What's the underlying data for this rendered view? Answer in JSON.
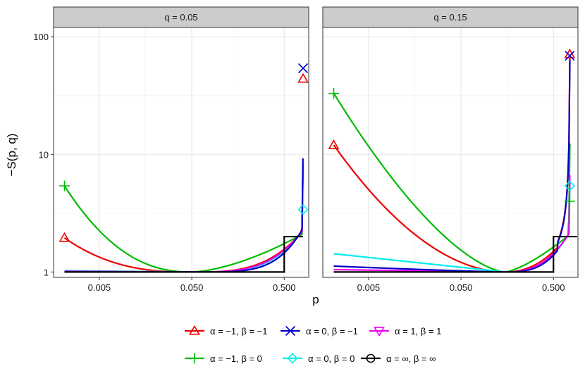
{
  "chart_data": {
    "type": "line",
    "xlabel": "p",
    "ylabel": "−S(p, q)",
    "x_scale": "log10",
    "y_scale": "log10",
    "xlim": [
      0.0016,
      0.92
    ],
    "ylim": [
      0.9,
      120
    ],
    "x_ticks": [
      0.005,
      0.05,
      0.5
    ],
    "x_tick_labels": [
      "0.005",
      "0.050",
      "0.500"
    ],
    "y_ticks": [
      1,
      10,
      100
    ],
    "y_tick_labels": [
      "1",
      "10",
      "100"
    ],
    "grid": true,
    "legend_position": "bottom",
    "colors": {
      "a-1_b-1": "#ee0000",
      "a0_b-1": "#0000cc",
      "a1_b1": "#ee00ee",
      "a-1_b0": "#00bb00",
      "a0_b0": "#00eeee",
      "ainf_binf": "#000000"
    },
    "legend": [
      {
        "key": "a-1_b-1",
        "label": "α = −1, β = −1",
        "marker": "triangle-up"
      },
      {
        "key": "a0_b-1",
        "label": "α = 0, β = −1",
        "marker": "cross"
      },
      {
        "key": "a1_b1",
        "label": "α = 1, β = 1",
        "marker": "triangle-down"
      },
      {
        "key": "a-1_b0",
        "label": "α = −1, β = 0",
        "marker": "plus"
      },
      {
        "key": "a0_b0",
        "label": "α = 0, β = 0",
        "marker": "diamond"
      },
      {
        "key": "ainf_binf",
        "label": "α = ∞, β = ∞",
        "marker": "circle"
      }
    ],
    "panels": [
      {
        "title": "q = 0.05",
        "q": 0.05,
        "markers": [
          {
            "key": "a-1_b-1",
            "x": 0.0021,
            "y": 1.95
          },
          {
            "key": "a-1_b0",
            "x": 0.0021,
            "y": 5.4
          },
          {
            "key": "a-1_b-1",
            "x": 0.8,
            "y": 44
          },
          {
            "key": "a0_b-1",
            "x": 0.8,
            "y": 54
          },
          {
            "key": "a0_b0",
            "x": 0.8,
            "y": 3.4
          }
        ]
      },
      {
        "title": "q = 0.15",
        "q": 0.15,
        "markers": [
          {
            "key": "a-1_b-1",
            "x": 0.0021,
            "y": 12
          },
          {
            "key": "a-1_b0",
            "x": 0.0021,
            "y": 33
          },
          {
            "key": "a-1_b-1",
            "x": 0.75,
            "y": 71
          },
          {
            "key": "a0_b-1",
            "x": 0.75,
            "y": 69
          },
          {
            "key": "a0_b0",
            "x": 0.75,
            "y": 5.4
          },
          {
            "key": "a-1_b0",
            "x": 0.75,
            "y": 4.0
          }
        ]
      }
    ]
  }
}
